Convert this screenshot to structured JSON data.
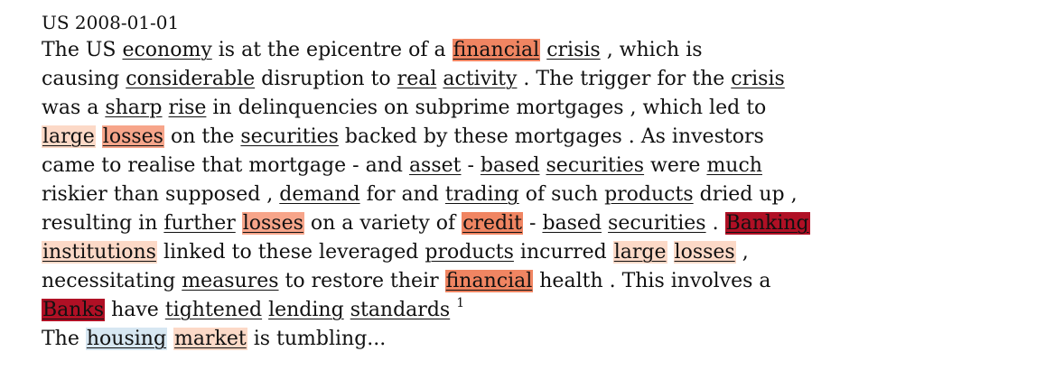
{
  "header": "US 2008-01-01",
  "palette": {
    "light": "#fcd9c7",
    "medium": "#f7a58a",
    "strong": "#f08562",
    "dark": "#b01025",
    "blue": "#d7e7f2"
  },
  "lines": [
    [
      {
        "t": "The US "
      },
      {
        "t": "economy",
        "u": true
      },
      {
        "t": " is at the epicentre of a "
      },
      {
        "t": "financial",
        "u": true,
        "hl": "strong"
      },
      {
        "t": " "
      },
      {
        "t": "crisis",
        "u": true
      },
      {
        "t": " , which is"
      }
    ],
    [
      {
        "t": "causing "
      },
      {
        "t": "considerable",
        "u": true
      },
      {
        "t": " disruption to "
      },
      {
        "t": "real",
        "u": true
      },
      {
        "t": " "
      },
      {
        "t": "activity",
        "u": true
      },
      {
        "t": " . The trigger for the "
      },
      {
        "t": "crisis",
        "u": true
      }
    ],
    [
      {
        "t": "was a "
      },
      {
        "t": "sharp",
        "u": true
      },
      {
        "t": " "
      },
      {
        "t": "rise",
        "u": true
      },
      {
        "t": " in delinquencies on subprime mortgages , which led to"
      }
    ],
    [
      {
        "t": "large",
        "u": true,
        "hl": "light"
      },
      {
        "t": " "
      },
      {
        "t": "losses",
        "u": true,
        "hl": "medium"
      },
      {
        "t": " on the "
      },
      {
        "t": "securities",
        "u": true
      },
      {
        "t": " backed by these mortgages . As investors"
      }
    ],
    [
      {
        "t": "came to realise that mortgage - and "
      },
      {
        "t": "asset",
        "u": true
      },
      {
        "t": " - "
      },
      {
        "t": "based",
        "u": true
      },
      {
        "t": " "
      },
      {
        "t": "securities",
        "u": true
      },
      {
        "t": " were "
      },
      {
        "t": "much",
        "u": true
      }
    ],
    [
      {
        "t": "riskier than supposed , "
      },
      {
        "t": "demand",
        "u": true
      },
      {
        "t": " for and "
      },
      {
        "t": "trading",
        "u": true
      },
      {
        "t": " of such "
      },
      {
        "t": "products",
        "u": true
      },
      {
        "t": " dried up ,"
      }
    ],
    [
      {
        "t": "resulting in "
      },
      {
        "t": "further",
        "u": true
      },
      {
        "t": " "
      },
      {
        "t": "losses",
        "u": true,
        "hl": "medium"
      },
      {
        "t": " on a variety of "
      },
      {
        "t": "credit",
        "u": true,
        "hl": "strong"
      },
      {
        "t": " - "
      },
      {
        "t": "based",
        "u": true
      },
      {
        "t": " "
      },
      {
        "t": "securities",
        "u": true
      },
      {
        "t": " . "
      },
      {
        "t": "Banking",
        "u": true,
        "hl": "dark"
      }
    ],
    [
      {
        "t": "institutions",
        "u": true,
        "hl": "light"
      },
      {
        "t": " linked to these leveraged "
      },
      {
        "t": "products",
        "u": true
      },
      {
        "t": " incurred "
      },
      {
        "t": "large",
        "u": true,
        "hl": "light"
      },
      {
        "t": " "
      },
      {
        "t": "losses",
        "u": true,
        "hl": "light"
      },
      {
        "t": " ,"
      }
    ],
    [
      {
        "t": "necessitating "
      },
      {
        "t": "measures",
        "u": true
      },
      {
        "t": " to restore their "
      },
      {
        "t": "financial",
        "u": true,
        "hl": "strong"
      },
      {
        "t": " health . This involves a"
      }
    ],
    [
      {
        "t": "Banks",
        "u": true,
        "hl": "dark"
      },
      {
        "t": " have "
      },
      {
        "t": "tightened",
        "u": true
      },
      {
        "t": " "
      },
      {
        "t": "lending",
        "u": true
      },
      {
        "t": " "
      },
      {
        "t": "standards",
        "u": true
      },
      {
        "t": " "
      },
      {
        "t": "1",
        "sup": true
      }
    ],
    [
      {
        "t": "The "
      },
      {
        "t": "housing",
        "u": true,
        "hl": "blue"
      },
      {
        "t": " "
      },
      {
        "t": "market",
        "u": true,
        "hl": "light"
      },
      {
        "t": " is tumbling..."
      }
    ]
  ]
}
